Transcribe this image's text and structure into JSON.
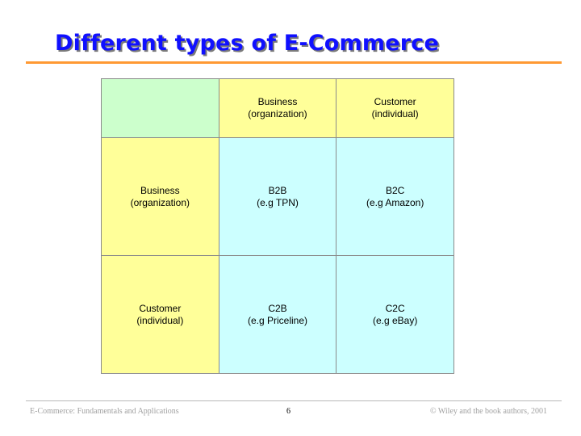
{
  "title": "Different types of E-Commerce",
  "matrix": {
    "col_headers": [
      {
        "line1": "Business",
        "line2": "(organization)"
      },
      {
        "line1": "Customer",
        "line2": "(individual)"
      }
    ],
    "rows": [
      {
        "header": {
          "line1": "Business",
          "line2": "(organization)"
        },
        "cells": [
          {
            "line1": "B2B",
            "line2": "(e.g TPN)"
          },
          {
            "line1": "B2C",
            "line2": "(e.g Amazon)"
          }
        ]
      },
      {
        "header": {
          "line1": "Customer",
          "line2": "(individual)"
        },
        "cells": [
          {
            "line1": "C2B",
            "line2": "(e.g Priceline)"
          },
          {
            "line1": "C2C",
            "line2": "(e.g eBay)"
          }
        ]
      }
    ]
  },
  "footer": {
    "left": "E-Commerce: Fundamentals and Applications",
    "page_number": "6",
    "right": "© Wiley and the book authors, 2001"
  },
  "colors": {
    "title": "#1010ff",
    "title_rule": "#ff9933",
    "corner_cell": "#ccffcc",
    "header_cells": "#ffff99",
    "body_cells": "#ccffff"
  }
}
